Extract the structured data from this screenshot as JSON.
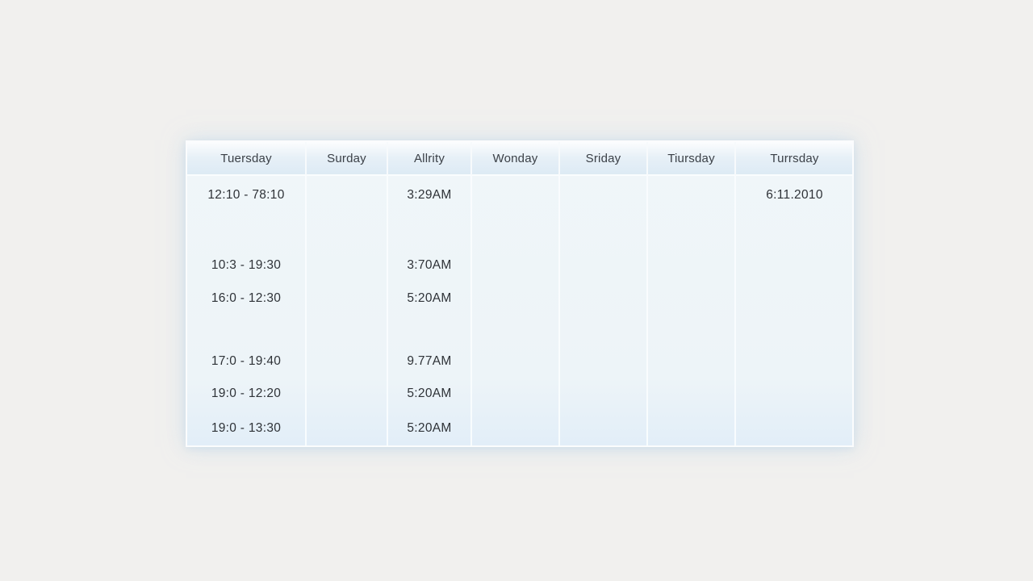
{
  "table": {
    "name": "weekly-schedule",
    "columns": [
      {
        "label": "Tuersday"
      },
      {
        "label": "Surday"
      },
      {
        "label": "Allrity"
      },
      {
        "label": "Wonday"
      },
      {
        "label": "Sriday"
      },
      {
        "label": "Tiursday"
      },
      {
        "label": "Turrsday"
      }
    ],
    "rows": [
      [
        "12:10 - 78:10",
        "",
        "3:29AM",
        "",
        "",
        "",
        "6:11.2010"
      ],
      [
        "",
        "",
        "",
        "",
        "",
        "",
        ""
      ],
      [
        "10:3 - 19:30",
        "",
        "3:70AM",
        "",
        "",
        "",
        ""
      ],
      [
        "16:0 - 12:30",
        "",
        "5:20AM",
        "",
        "",
        "",
        ""
      ],
      [
        "",
        "",
        "",
        "",
        "",
        "",
        ""
      ],
      [
        "17:0 - 19:40",
        "",
        "9.77AM",
        "",
        "",
        "",
        ""
      ],
      [
        "19:0 - 12:20",
        "",
        "5:20AM",
        "",
        "",
        "",
        ""
      ],
      [
        "19:0 - 13:30",
        "",
        "5:20AM",
        "",
        "",
        "",
        ""
      ]
    ],
    "colors": {
      "page_background": "#f1f0ee",
      "table_body": "#eef5f9",
      "table_body_bottom": "#e2eef8",
      "header_background": "#dceaf4",
      "grid_line": "#fafdfe",
      "header_text": "#3b4047",
      "body_text": "#2e3237"
    }
  }
}
